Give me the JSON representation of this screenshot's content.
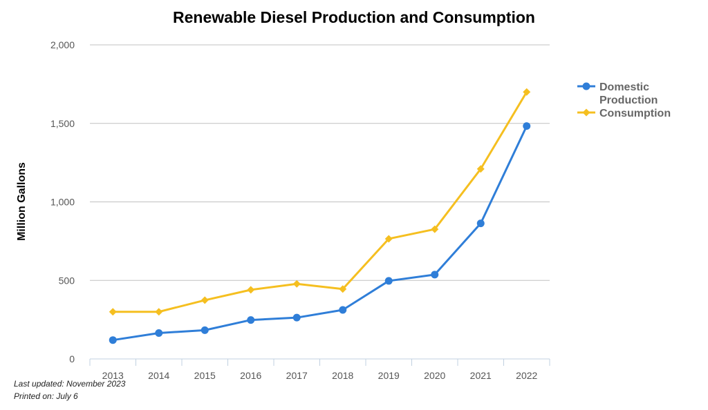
{
  "chart_data": {
    "type": "line",
    "title": "Renewable Diesel Production and Consumption",
    "ylabel": "Million Gallons",
    "xlabel": "",
    "categories": [
      "2013",
      "2014",
      "2015",
      "2016",
      "2017",
      "2018",
      "2019",
      "2020",
      "2021",
      "2022"
    ],
    "ylim": [
      0,
      2000
    ],
    "yticks": [
      0,
      500,
      1000,
      1500,
      2000
    ],
    "ytick_labels": [
      "0",
      "500",
      "1,000",
      "1,500",
      "2,000"
    ],
    "grid": true,
    "legend_position": "right",
    "series": [
      {
        "name": "Domestic Production",
        "legend_lines": [
          "Domestic",
          "Production"
        ],
        "marker": "circle",
        "color": "#2f7ed8",
        "values": [
          120,
          165,
          183,
          248,
          263,
          312,
          497,
          537,
          863,
          1483
        ]
      },
      {
        "name": "Consumption",
        "legend_lines": [
          "Consumption"
        ],
        "marker": "diamond",
        "color": "#f5bf20",
        "values": [
          300,
          300,
          374,
          440,
          478,
          445,
          765,
          826,
          1210,
          1700
        ]
      }
    ]
  },
  "footer": {
    "updated": "Last updated: November 2023",
    "printed": "Printed on: July 6"
  }
}
